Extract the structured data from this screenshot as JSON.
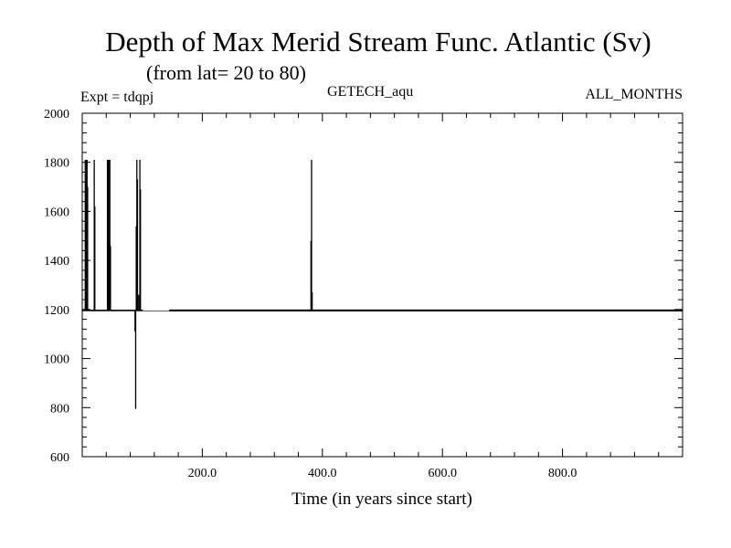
{
  "chart_data": {
    "type": "line",
    "title": "Depth of Max Merid Stream Func. Atlantic (Sv)",
    "subtitle": "(from lat= 20 to 80)",
    "annotations": {
      "left": "Expt = tdqpj",
      "center": "GETECH_aqu",
      "right": "ALL_MONTHS"
    },
    "xlabel": "Time (in years since start)",
    "ylabel": "",
    "xlim": [
      0,
      1000
    ],
    "ylim": [
      600,
      2000
    ],
    "x_ticks": [
      200,
      400,
      600,
      800
    ],
    "x_tick_labels": [
      "200.0",
      "400.0",
      "600.0",
      "800.0"
    ],
    "y_ticks": [
      600,
      800,
      1000,
      1200,
      1400,
      1600,
      1800,
      2000
    ],
    "y_tick_labels": [
      "600",
      "800",
      "1000",
      "1200",
      "1400",
      "1600",
      "1800",
      "2000"
    ],
    "grid": false,
    "baseline": 1196,
    "series": [
      {
        "color": "#000000",
        "spikes": [
          {
            "x": 5,
            "y": 1810
          },
          {
            "x": 6,
            "y": 1700
          },
          {
            "x": 7,
            "y": 1810
          },
          {
            "x": 8,
            "y": 1810
          },
          {
            "x": 9,
            "y": 1700
          },
          {
            "x": 20,
            "y": 1810
          },
          {
            "x": 21,
            "y": 1620
          },
          {
            "x": 42,
            "y": 1810
          },
          {
            "x": 43,
            "y": 1810
          },
          {
            "x": 44,
            "y": 1810
          },
          {
            "x": 45,
            "y": 1460
          },
          {
            "x": 46,
            "y": 1810
          },
          {
            "x": 47,
            "y": 1460
          },
          {
            "x": 88,
            "y": 1110
          },
          {
            "x": 89,
            "y": 795
          },
          {
            "x": 90,
            "y": 1540
          },
          {
            "x": 91,
            "y": 1810
          },
          {
            "x": 92,
            "y": 1730
          },
          {
            "x": 94,
            "y": 1260
          },
          {
            "x": 96,
            "y": 1810
          },
          {
            "x": 97,
            "y": 1690
          },
          {
            "x": 381,
            "y": 1480
          },
          {
            "x": 382,
            "y": 1810
          },
          {
            "x": 383,
            "y": 1270
          }
        ],
        "gap": [
          101,
          145
        ]
      }
    ]
  }
}
